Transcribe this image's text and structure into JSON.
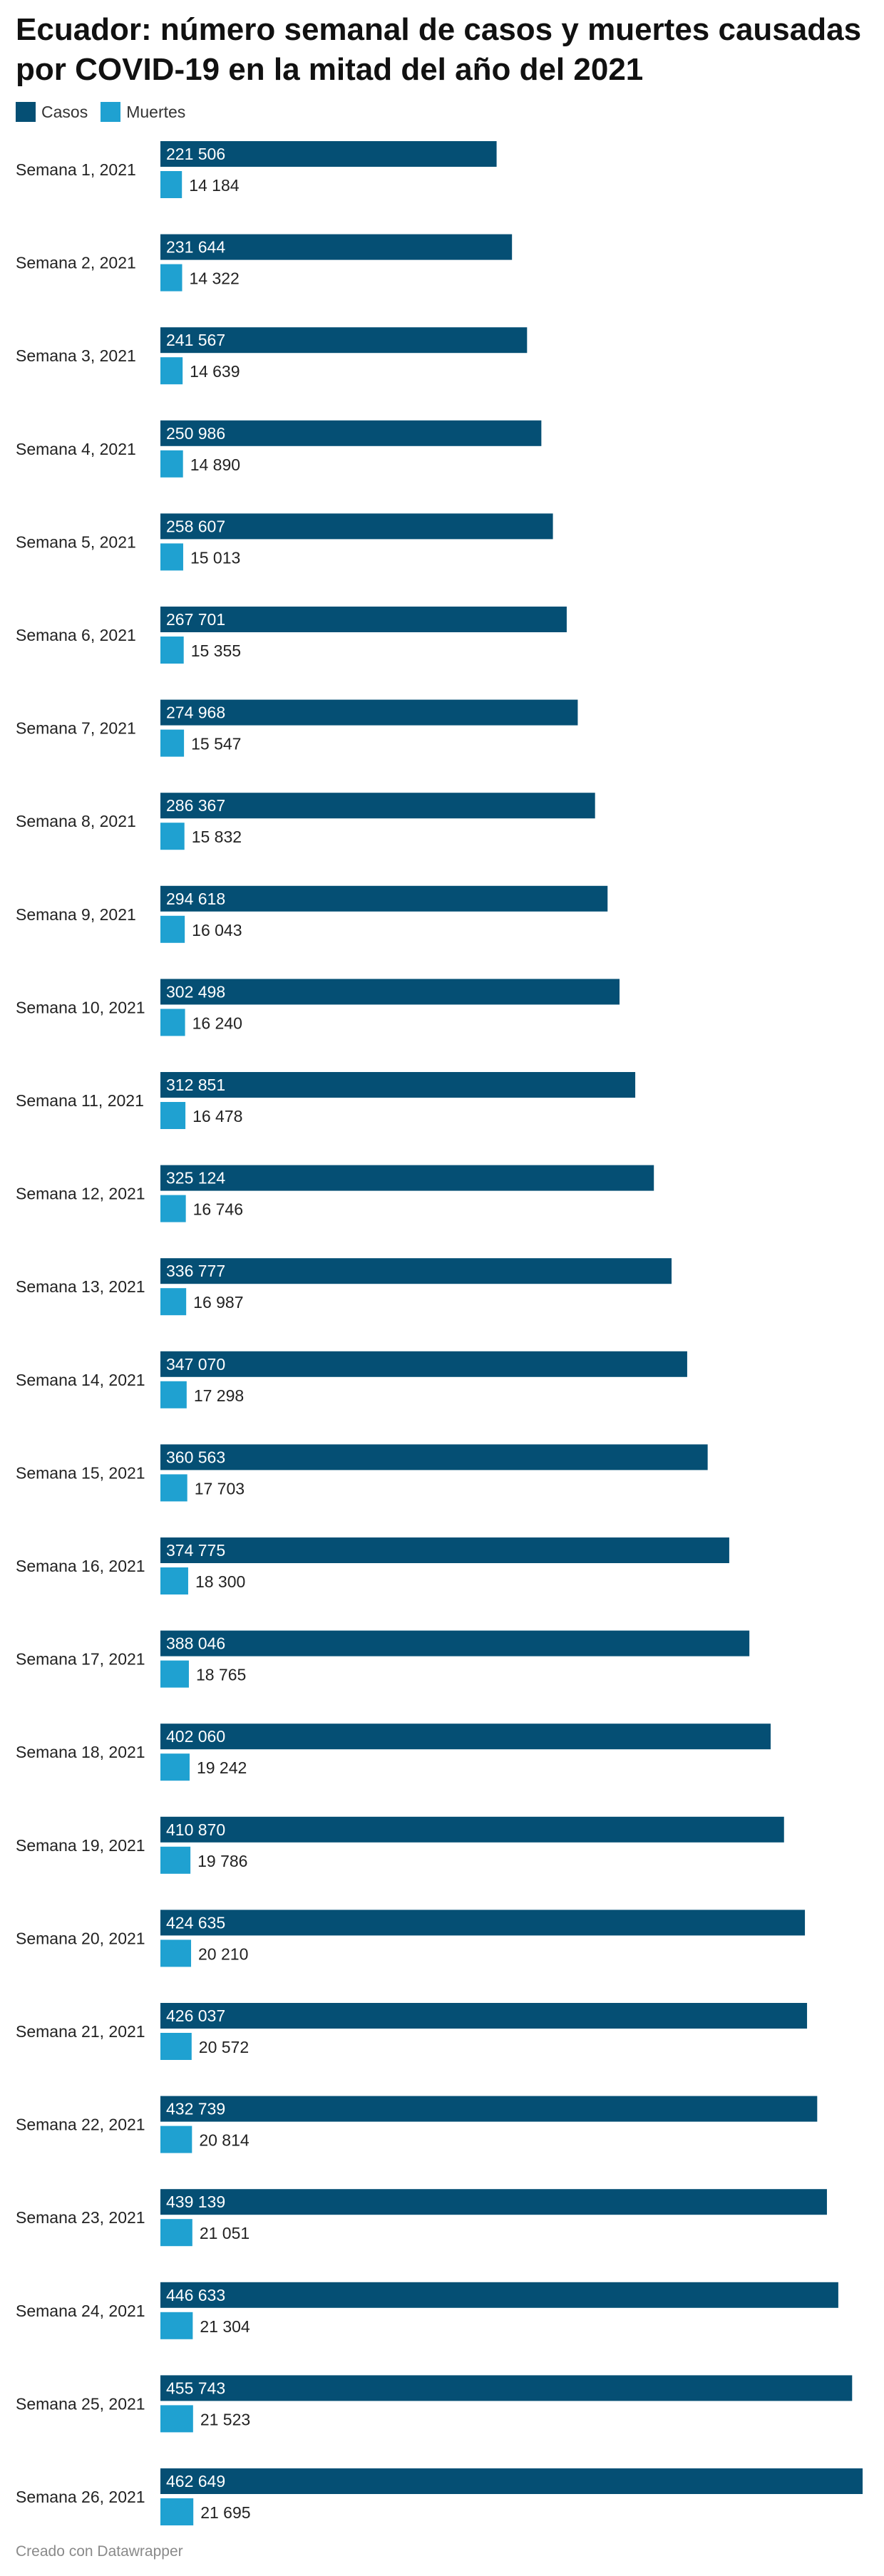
{
  "title": "Ecuador: número semanal de casos y muertes causadas por COVID-19 en la mitad del año del 2021",
  "footer": "Creado con Datawrapper",
  "colors": {
    "casos": "#054f74",
    "muertes": "#1fa1d1"
  },
  "chart_data": {
    "type": "bar",
    "orientation": "horizontal",
    "title": "Ecuador: número semanal de casos y muertes causadas por COVID-19 en la mitad del año del 2021",
    "legend_position": "top-left",
    "grid": false,
    "categories": [
      "Semana 1, 2021",
      "Semana 2, 2021",
      "Semana 3, 2021",
      "Semana 4, 2021",
      "Semana 5, 2021",
      "Semana 6, 2021",
      "Semana 7, 2021",
      "Semana 8, 2021",
      "Semana 9, 2021",
      "Semana 10, 2021",
      "Semana 11, 2021",
      "Semana 12, 2021",
      "Semana 13, 2021",
      "Semana 14, 2021",
      "Semana 15, 2021",
      "Semana 16, 2021",
      "Semana 17, 2021",
      "Semana 18, 2021",
      "Semana 19, 2021",
      "Semana 20, 2021",
      "Semana 21, 2021",
      "Semana 22, 2021",
      "Semana 23, 2021",
      "Semana 24, 2021",
      "Semana 25, 2021",
      "Semana 26, 2021"
    ],
    "series": [
      {
        "name": "Casos",
        "color": "#054f74",
        "values": [
          221506,
          231644,
          241567,
          250986,
          258607,
          267701,
          274968,
          286367,
          294618,
          302498,
          312851,
          325124,
          336777,
          347070,
          360563,
          374775,
          388046,
          402060,
          410870,
          424635,
          426037,
          432739,
          439139,
          446633,
          455743,
          462649
        ],
        "labels": [
          "221 506",
          "231 644",
          "241 567",
          "250 986",
          "258 607",
          "267 701",
          "274 968",
          "286 367",
          "294 618",
          "302 498",
          "312 851",
          "325 124",
          "336 777",
          "347 070",
          "360 563",
          "374 775",
          "388 046",
          "402 060",
          "410 870",
          "424 635",
          "426 037",
          "432 739",
          "439 139",
          "446 633",
          "455 743",
          "462 649"
        ]
      },
      {
        "name": "Muertes",
        "color": "#1fa1d1",
        "values": [
          14184,
          14322,
          14639,
          14890,
          15013,
          15355,
          15547,
          15832,
          16043,
          16240,
          16478,
          16746,
          16987,
          17298,
          17703,
          18300,
          18765,
          19242,
          19786,
          20210,
          20572,
          20814,
          21051,
          21304,
          21523,
          21695
        ],
        "labels": [
          "14 184",
          "14 322",
          "14 639",
          "14 890",
          "15 013",
          "15 355",
          "15 547",
          "15 832",
          "16 043",
          "16 240",
          "16 478",
          "16 746",
          "16 987",
          "17 298",
          "17 703",
          "18 300",
          "18 765",
          "19 242",
          "19 786",
          "20 210",
          "20 572",
          "20 814",
          "21 051",
          "21 304",
          "21 523",
          "21 695"
        ]
      }
    ],
    "xlim": [
      0,
      462649
    ]
  }
}
